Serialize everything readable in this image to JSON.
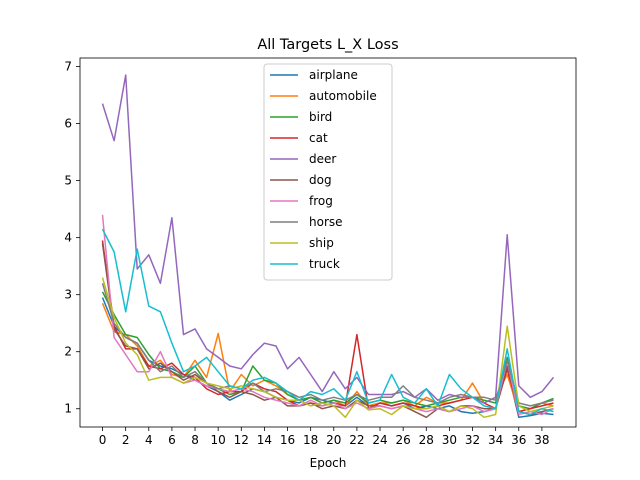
{
  "chart_data": {
    "type": "line",
    "title": "All Targets L_X Loss",
    "xlabel": "Epoch",
    "ylabel": "",
    "xlim": [
      -1.95,
      40.95
    ],
    "ylim": [
      0.68,
      7.15
    ],
    "xticks": [
      0,
      2,
      4,
      6,
      8,
      10,
      12,
      14,
      16,
      18,
      20,
      22,
      24,
      26,
      28,
      30,
      32,
      34,
      36,
      38
    ],
    "yticks": [
      1,
      2,
      3,
      4,
      5,
      6,
      7
    ],
    "grid": false,
    "legend_position": "upper center",
    "x": [
      0,
      1,
      2,
      3,
      4,
      5,
      6,
      7,
      8,
      9,
      10,
      11,
      12,
      13,
      14,
      15,
      16,
      17,
      18,
      19,
      20,
      21,
      22,
      23,
      24,
      25,
      26,
      27,
      28,
      29,
      30,
      31,
      32,
      33,
      34,
      35,
      36,
      37,
      38,
      39
    ],
    "series": [
      {
        "name": "airplane",
        "color": "#1f77b4",
        "values": [
          2.95,
          2.45,
          2.25,
          2.15,
          1.85,
          1.75,
          1.7,
          1.6,
          1.5,
          1.4,
          1.3,
          1.15,
          1.25,
          1.35,
          1.3,
          1.2,
          1.15,
          1.1,
          1.2,
          1.15,
          1.1,
          1.05,
          1.2,
          1.05,
          1.1,
          1.05,
          1.1,
          1.0,
          1.05,
          1.0,
          1.05,
          0.95,
          0.92,
          0.95,
          1.0,
          1.7,
          0.85,
          0.88,
          0.92,
          0.9
        ]
      },
      {
        "name": "automobile",
        "color": "#ff7f0e",
        "values": [
          2.85,
          2.35,
          2.3,
          2.1,
          1.75,
          1.85,
          1.6,
          1.55,
          1.85,
          1.55,
          2.32,
          1.3,
          1.6,
          1.4,
          1.5,
          1.4,
          1.25,
          1.15,
          1.2,
          1.1,
          1.15,
          1.05,
          1.3,
          1.05,
          1.1,
          1.1,
          1.15,
          1.05,
          1.2,
          1.1,
          1.1,
          1.15,
          1.45,
          1.1,
          1.2,
          1.6,
          0.95,
          1.0,
          1.1,
          1.05
        ]
      },
      {
        "name": "bird",
        "color": "#2ca02c",
        "values": [
          3.05,
          2.65,
          2.3,
          2.25,
          1.95,
          1.7,
          1.65,
          1.55,
          1.75,
          1.45,
          1.35,
          1.25,
          1.3,
          1.75,
          1.5,
          1.45,
          1.25,
          1.15,
          1.2,
          1.1,
          1.15,
          1.1,
          1.25,
          1.1,
          1.15,
          1.1,
          1.15,
          1.1,
          1.05,
          1.1,
          1.15,
          1.2,
          1.2,
          1.15,
          1.1,
          1.9,
          1.05,
          1.0,
          1.1,
          1.18
        ]
      },
      {
        "name": "cat",
        "color": "#d62728",
        "values": [
          3.95,
          2.45,
          2.05,
          2.05,
          1.75,
          1.7,
          1.8,
          1.6,
          1.55,
          1.35,
          1.25,
          1.3,
          1.3,
          1.45,
          1.35,
          1.3,
          1.15,
          1.05,
          1.1,
          1.05,
          1.1,
          1.05,
          2.3,
          1.0,
          1.1,
          1.05,
          1.1,
          1.05,
          1.0,
          1.05,
          1.1,
          1.15,
          1.2,
          1.1,
          1.0,
          1.7,
          0.95,
          1.0,
          1.05,
          1.1
        ]
      },
      {
        "name": "deer",
        "color": "#9467bd",
        "values": [
          6.35,
          5.7,
          6.85,
          3.45,
          3.7,
          3.2,
          4.35,
          2.3,
          2.4,
          2.05,
          1.9,
          1.75,
          1.7,
          1.95,
          2.15,
          2.1,
          1.7,
          1.9,
          1.6,
          1.3,
          1.65,
          1.35,
          1.55,
          1.25,
          1.25,
          1.25,
          1.3,
          1.2,
          1.35,
          1.15,
          1.25,
          1.2,
          1.2,
          1.1,
          1.2,
          4.05,
          1.4,
          1.2,
          1.3,
          1.55
        ]
      },
      {
        "name": "dog",
        "color": "#8c564b",
        "values": [
          3.9,
          2.4,
          2.1,
          2.05,
          1.7,
          1.8,
          1.65,
          1.5,
          1.6,
          1.45,
          1.3,
          1.2,
          1.3,
          1.25,
          1.15,
          1.2,
          1.05,
          1.05,
          1.1,
          1.0,
          1.05,
          1.0,
          1.15,
          1.05,
          1.05,
          1.0,
          1.05,
          0.95,
          0.85,
          1.0,
          0.95,
          1.05,
          1.05,
          1.0,
          1.0,
          1.75,
          0.95,
          0.9,
          0.95,
          1.0
        ]
      },
      {
        "name": "frog",
        "color": "#e377c2",
        "values": [
          4.4,
          2.25,
          1.95,
          1.65,
          1.65,
          2.0,
          1.55,
          1.45,
          1.5,
          1.4,
          1.35,
          1.3,
          1.35,
          1.3,
          1.2,
          1.15,
          1.1,
          1.05,
          1.15,
          1.05,
          1.1,
          1.0,
          1.1,
          1.0,
          1.05,
          1.0,
          1.05,
          1.0,
          0.95,
          1.0,
          0.95,
          1.0,
          1.05,
          0.95,
          1.0,
          1.85,
          0.9,
          0.95,
          0.9,
          1.0
        ]
      },
      {
        "name": "horse",
        "color": "#7f7f7f",
        "values": [
          3.2,
          2.5,
          2.25,
          2.15,
          1.85,
          1.65,
          1.75,
          1.55,
          1.65,
          1.45,
          1.35,
          1.4,
          1.35,
          1.45,
          1.3,
          1.35,
          1.3,
          1.2,
          1.25,
          1.15,
          1.2,
          1.15,
          1.25,
          1.15,
          1.2,
          1.2,
          1.4,
          1.2,
          1.15,
          1.1,
          1.2,
          1.25,
          1.2,
          1.2,
          1.15,
          1.85,
          1.1,
          1.05,
          1.1,
          1.15
        ]
      },
      {
        "name": "ship",
        "color": "#bcbd22",
        "values": [
          3.3,
          2.6,
          2.15,
          1.95,
          1.5,
          1.55,
          1.55,
          1.45,
          1.55,
          1.45,
          1.4,
          1.35,
          1.4,
          1.35,
          1.3,
          1.2,
          1.15,
          1.15,
          1.05,
          1.1,
          1.05,
          0.85,
          1.15,
          0.98,
          1.0,
          0.9,
          1.05,
          1.0,
          1.0,
          1.05,
          0.95,
          1.05,
          1.0,
          0.85,
          0.9,
          2.45,
          1.05,
          0.95,
          1.0,
          1.05
        ]
      },
      {
        "name": "truck",
        "color": "#17becf",
        "values": [
          4.15,
          3.75,
          2.7,
          3.8,
          2.8,
          2.7,
          2.15,
          1.65,
          1.75,
          1.9,
          1.65,
          1.4,
          1.35,
          1.5,
          1.55,
          1.45,
          1.3,
          1.15,
          1.3,
          1.25,
          1.35,
          1.15,
          1.65,
          1.1,
          1.15,
          1.6,
          1.2,
          1.1,
          1.35,
          1.05,
          1.6,
          1.35,
          1.2,
          1.05,
          1.0,
          2.05,
          0.95,
          0.9,
          1.0,
          0.95
        ]
      }
    ]
  }
}
